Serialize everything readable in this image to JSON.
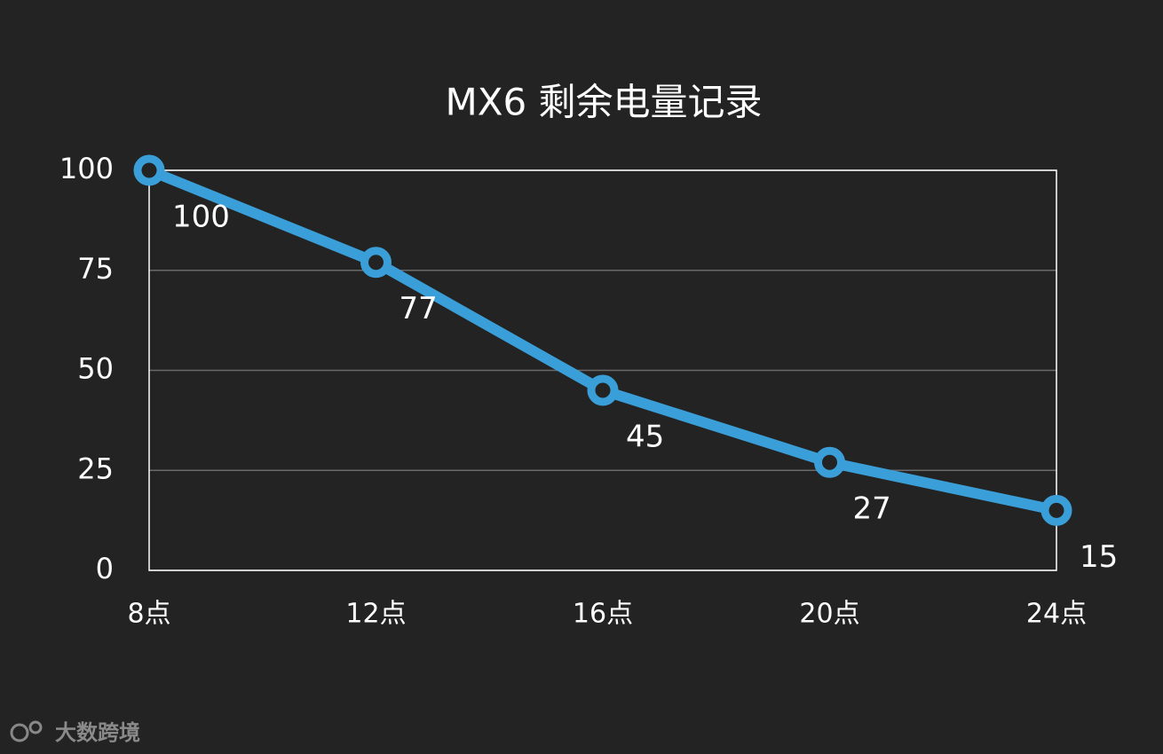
{
  "chart_data": {
    "type": "line",
    "title": "MX6 剩余电量记录",
    "categories": [
      "8点",
      "12点",
      "16点",
      "20点",
      "24点"
    ],
    "values": [
      100,
      77,
      45,
      27,
      15
    ],
    "color": "#3a9fd8",
    "ylim": [
      0,
      100
    ],
    "yticks": [
      0,
      25,
      50,
      75,
      100
    ],
    "grid": true,
    "watermark": "大数跨境"
  }
}
